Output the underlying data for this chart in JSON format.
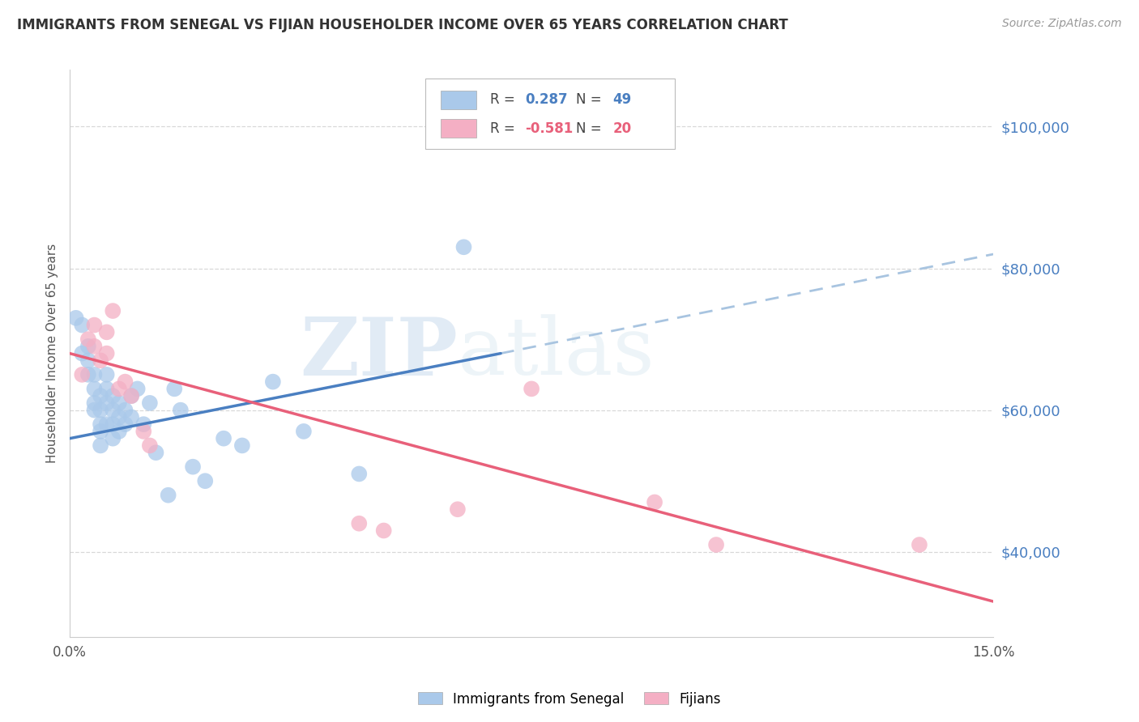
{
  "title": "IMMIGRANTS FROM SENEGAL VS FIJIAN HOUSEHOLDER INCOME OVER 65 YEARS CORRELATION CHART",
  "source": "Source: ZipAtlas.com",
  "ylabel": "Householder Income Over 65 years",
  "xlim": [
    0.0,
    0.15
  ],
  "ylim": [
    28000,
    108000
  ],
  "yticks": [
    40000,
    60000,
    80000,
    100000
  ],
  "ytick_labels": [
    "$40,000",
    "$60,000",
    "$80,000",
    "$100,000"
  ],
  "xticks": [
    0.0,
    0.03,
    0.06,
    0.09,
    0.12,
    0.15
  ],
  "xtick_labels": [
    "0.0%",
    "",
    "",
    "",
    "",
    "15.0%"
  ],
  "blue_color": "#aac9ea",
  "pink_color": "#f4afc4",
  "blue_line_color": "#4a7fc1",
  "pink_line_color": "#e8607a",
  "dashed_line_color": "#a8c4e0",
  "watermark_zip": "ZIP",
  "watermark_atlas": "atlas",
  "senegal_x": [
    0.001,
    0.002,
    0.002,
    0.003,
    0.003,
    0.003,
    0.004,
    0.004,
    0.004,
    0.004,
    0.005,
    0.005,
    0.005,
    0.005,
    0.005,
    0.006,
    0.006,
    0.006,
    0.006,
    0.007,
    0.007,
    0.007,
    0.007,
    0.008,
    0.008,
    0.008,
    0.009,
    0.009,
    0.01,
    0.01,
    0.011,
    0.012,
    0.013,
    0.014,
    0.016,
    0.017,
    0.018,
    0.02,
    0.022,
    0.025,
    0.028,
    0.033,
    0.038,
    0.047,
    0.064
  ],
  "senegal_y": [
    73000,
    72000,
    68000,
    69000,
    67000,
    65000,
    65000,
    63000,
    61000,
    60000,
    62000,
    60000,
    58000,
    57000,
    55000,
    65000,
    63000,
    61000,
    58000,
    62000,
    60000,
    58000,
    56000,
    61000,
    59000,
    57000,
    60000,
    58000,
    59000,
    62000,
    63000,
    58000,
    61000,
    54000,
    48000,
    63000,
    60000,
    52000,
    50000,
    56000,
    55000,
    64000,
    57000,
    51000,
    83000
  ],
  "fijian_x": [
    0.002,
    0.003,
    0.004,
    0.004,
    0.005,
    0.006,
    0.006,
    0.007,
    0.008,
    0.009,
    0.01,
    0.012,
    0.013,
    0.047,
    0.051,
    0.063,
    0.075,
    0.095,
    0.105,
    0.138
  ],
  "fijian_y": [
    65000,
    70000,
    72000,
    69000,
    67000,
    71000,
    68000,
    74000,
    63000,
    64000,
    62000,
    57000,
    55000,
    44000,
    43000,
    46000,
    63000,
    47000,
    41000,
    41000
  ],
  "blue_line_x0": 0.0,
  "blue_line_y0": 56000,
  "blue_line_x1": 0.07,
  "blue_line_y1": 68000,
  "dashed_line_x0": 0.07,
  "dashed_line_y0": 68000,
  "dashed_line_x1": 0.15,
  "dashed_line_y1": 82000,
  "pink_line_x0": 0.0,
  "pink_line_y0": 68000,
  "pink_line_x1": 0.15,
  "pink_line_y1": 33000
}
